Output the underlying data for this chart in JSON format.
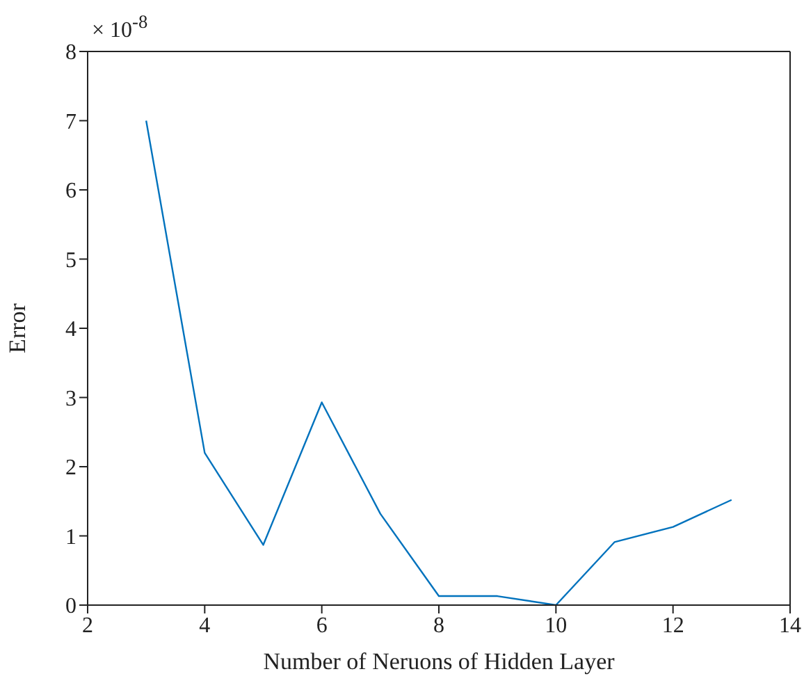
{
  "chart_data": {
    "type": "line",
    "xlabel": "Number of Neruons of Hidden Layer",
    "ylabel": "Error",
    "annotations": [
      "× 10$^{-8}$"
    ],
    "x": [
      3,
      4,
      5,
      6,
      7,
      8,
      9,
      10,
      11,
      12,
      13
    ],
    "series": [
      {
        "color": "#0072bd",
        "values": [
          7.0,
          2.2,
          0.87,
          2.93,
          1.32,
          0.13,
          0.13,
          0.0,
          0.91,
          1.13,
          1.52
        ]
      }
    ],
    "xlim": [
      2,
      14
    ],
    "xticks": [
      2,
      4,
      6,
      8,
      10,
      12,
      14
    ],
    "ylim": [
      0,
      8
    ],
    "yticks": [
      0,
      1,
      2,
      3,
      4,
      5,
      6,
      7,
      8
    ],
    "grid": false,
    "legend": false,
    "marker": "none",
    "line_style": "solid"
  }
}
